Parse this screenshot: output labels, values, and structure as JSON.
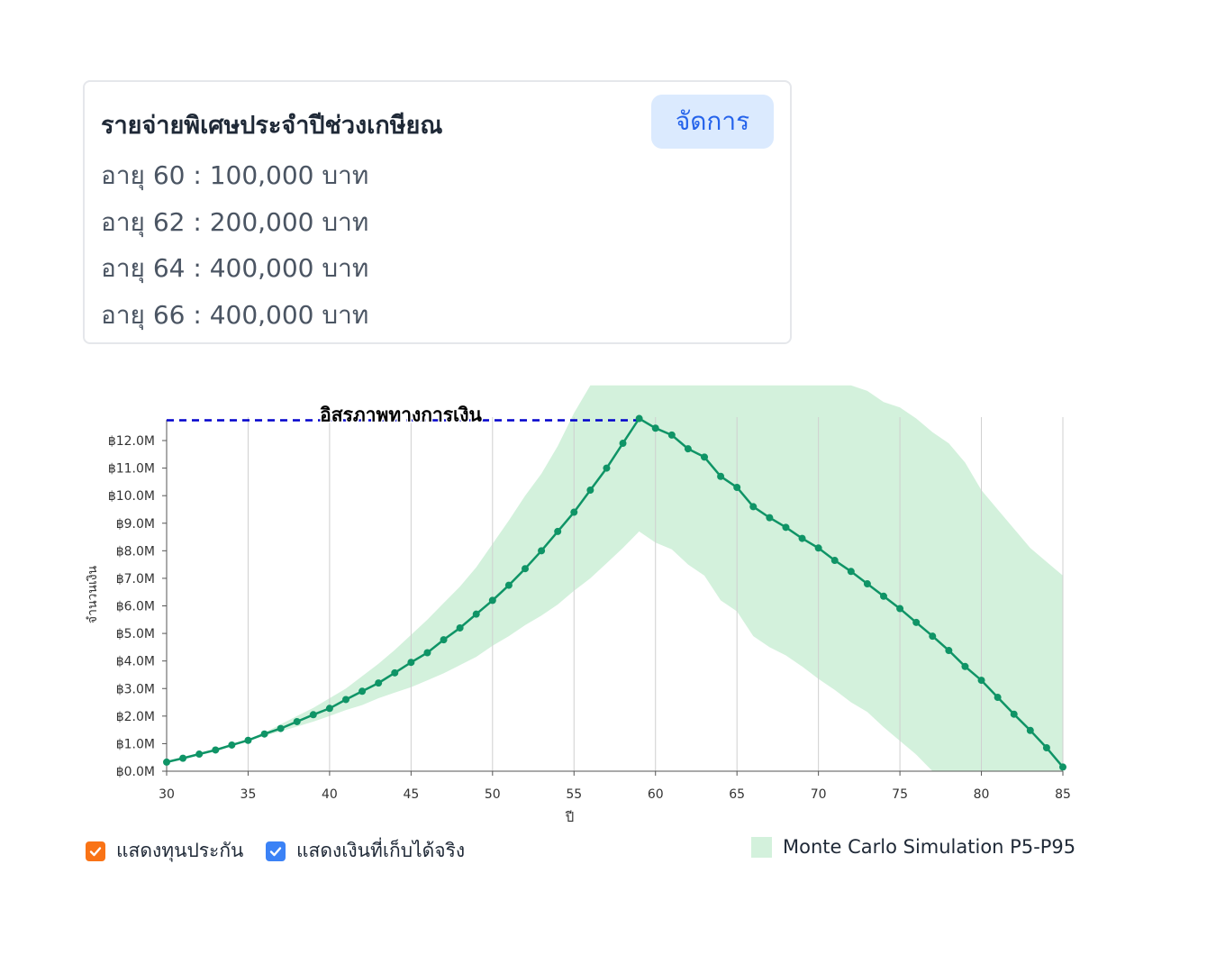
{
  "card": {
    "title": "รายจ่ายพิเศษประจำปีช่วงเกษียณ",
    "manage_label": "จัดการ",
    "items": [
      "อายุ 60 : 100,000 บาท",
      "อายุ 62 : 200,000 บาท",
      "อายุ 64 : 400,000 บาท",
      "อายุ 66 : 400,000 บาท"
    ]
  },
  "legend": {
    "insurance_label": "แสดงทุนประกัน",
    "actual_savings_label": "แสดงเงินที่เก็บได้จริง",
    "montecarlo_label": "Monte Carlo Simulation P5-P95",
    "insurance_color": "#f97316",
    "actual_savings_color": "#3b82f6"
  },
  "chart_data": {
    "type": "line",
    "title": "",
    "xlabel": "ปี",
    "ylabel": "จำนวนเงิน",
    "xlim": [
      30,
      85
    ],
    "ylim": [
      0,
      12.5
    ],
    "x_ticks": [
      30,
      35,
      40,
      45,
      50,
      55,
      60,
      65,
      70,
      75,
      80,
      85
    ],
    "y_ticks": [
      0,
      1,
      2,
      3,
      4,
      5,
      6,
      7,
      8,
      9,
      10,
      11,
      12
    ],
    "y_tick_labels": [
      "฿0.0M",
      "฿1.0M",
      "฿2.0M",
      "฿3.0M",
      "฿4.0M",
      "฿5.0M",
      "฿6.0M",
      "฿7.0M",
      "฿8.0M",
      "฿9.0M",
      "฿10.0M",
      "฿11.0M",
      "฿12.0M"
    ],
    "grid": "vertical",
    "annotation": {
      "text": "อิสรภาพทางการเงิน",
      "value": 12.8,
      "from_x": 30,
      "to_x": 59,
      "color": "#0000cc"
    },
    "line_color": "#0f9466",
    "band_color": "#d3f1dc",
    "series": [
      {
        "x": [
          30,
          31,
          32,
          33,
          34,
          35,
          36,
          37,
          38,
          39,
          40,
          41,
          42,
          43,
          44,
          45,
          46,
          47,
          48,
          49,
          50,
          51,
          52,
          53,
          54,
          55,
          56,
          57,
          58,
          59,
          60,
          61,
          62,
          63,
          64,
          65,
          66,
          67,
          68,
          69,
          70,
          71,
          72,
          73,
          74,
          75,
          76,
          77,
          78,
          79,
          80,
          81,
          82,
          83,
          84,
          85
        ],
        "values": [
          0.33,
          0.47,
          0.62,
          0.77,
          0.95,
          1.12,
          1.35,
          1.55,
          1.8,
          2.05,
          2.28,
          2.6,
          2.9,
          3.2,
          3.57,
          3.95,
          4.3,
          4.77,
          5.2,
          5.7,
          6.2,
          6.75,
          7.35,
          8.0,
          8.7,
          9.4,
          10.2,
          11.0,
          11.9,
          12.8,
          12.45,
          12.2,
          11.7,
          11.4,
          10.7,
          10.3,
          9.6,
          9.2,
          8.85,
          8.45,
          8.1,
          7.65,
          7.25,
          6.8,
          6.35,
          5.9,
          5.4,
          4.9,
          4.38,
          3.8,
          3.3,
          2.68,
          2.07,
          1.48,
          0.85,
          0.15
        ]
      }
    ],
    "band": {
      "x": [
        30,
        31,
        32,
        33,
        34,
        35,
        36,
        37,
        38,
        39,
        40,
        41,
        42,
        43,
        44,
        45,
        46,
        47,
        48,
        49,
        50,
        51,
        52,
        53,
        54,
        55,
        56,
        57,
        58,
        59,
        60,
        61,
        62,
        63,
        64,
        65,
        66,
        67,
        68,
        69,
        70,
        71,
        72,
        73,
        74,
        75,
        76,
        77,
        78,
        79,
        80,
        81,
        82,
        83,
        84,
        85
      ],
      "p5": [
        0.33,
        0.47,
        0.62,
        0.77,
        0.95,
        1.1,
        1.28,
        1.45,
        1.62,
        1.8,
        2.0,
        2.22,
        2.4,
        2.65,
        2.85,
        3.05,
        3.3,
        3.55,
        3.85,
        4.15,
        4.55,
        4.9,
        5.3,
        5.65,
        6.05,
        6.55,
        7.0,
        7.55,
        8.1,
        8.7,
        8.3,
        8.05,
        7.5,
        7.1,
        6.2,
        5.8,
        4.9,
        4.5,
        4.2,
        3.8,
        3.35,
        2.95,
        2.5,
        2.15,
        1.6,
        1.1,
        0.6,
        0.0,
        0.0,
        0.0,
        0.0,
        0.0,
        0.0,
        0.0,
        0.0,
        0.0
      ],
      "p95": [
        0.33,
        0.47,
        0.62,
        0.77,
        0.95,
        1.15,
        1.4,
        1.7,
        2.0,
        2.3,
        2.65,
        3.0,
        3.45,
        3.9,
        4.4,
        4.95,
        5.5,
        6.1,
        6.7,
        7.4,
        8.25,
        9.1,
        10.0,
        10.8,
        11.8,
        13.0,
        14.0,
        14.0,
        14.0,
        14.0,
        14.0,
        14.0,
        14.0,
        14.0,
        14.0,
        14.0,
        14.0,
        14.0,
        14.0,
        14.0,
        14.0,
        14.0,
        14.0,
        13.8,
        13.4,
        13.2,
        12.8,
        12.3,
        11.9,
        11.2,
        10.2,
        9.5,
        8.8,
        8.1,
        7.6,
        7.1
      ]
    }
  }
}
